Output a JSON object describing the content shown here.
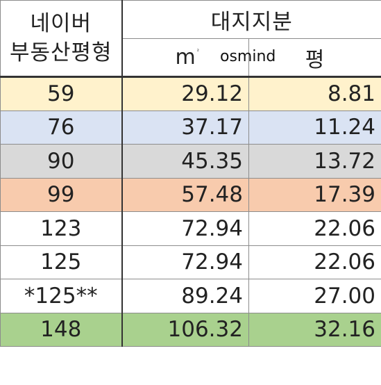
{
  "header": {
    "col1_line1": "네이버",
    "col1_line2": "부동산평형",
    "group_title": "대지지분",
    "sub_m2": "m",
    "sub_m2_sup": "²",
    "sub_pyeong": "평",
    "watermark": "osmind"
  },
  "rows": [
    {
      "type": "59",
      "m2": "29.12",
      "pyeong": "8.81",
      "color": "#fff2cc"
    },
    {
      "type": "76",
      "m2": "37.17",
      "pyeong": "11.24",
      "color": "#dae3f3"
    },
    {
      "type": "90",
      "m2": "45.35",
      "pyeong": "13.72",
      "color": "#d9d9d9"
    },
    {
      "type": "99",
      "m2": "57.48",
      "pyeong": "17.39",
      "color": "#f8cbad"
    },
    {
      "type": "123",
      "m2": "72.94",
      "pyeong": "22.06",
      "color": "#ffffff"
    },
    {
      "type": "125",
      "m2": "72.94",
      "pyeong": "22.06",
      "color": "#ffffff"
    },
    {
      "type": "*125**",
      "m2": "89.24",
      "pyeong": "27.00",
      "color": "#ffffff"
    },
    {
      "type": "148",
      "m2": "106.32",
      "pyeong": "32.16",
      "color": "#a9d18e"
    }
  ]
}
